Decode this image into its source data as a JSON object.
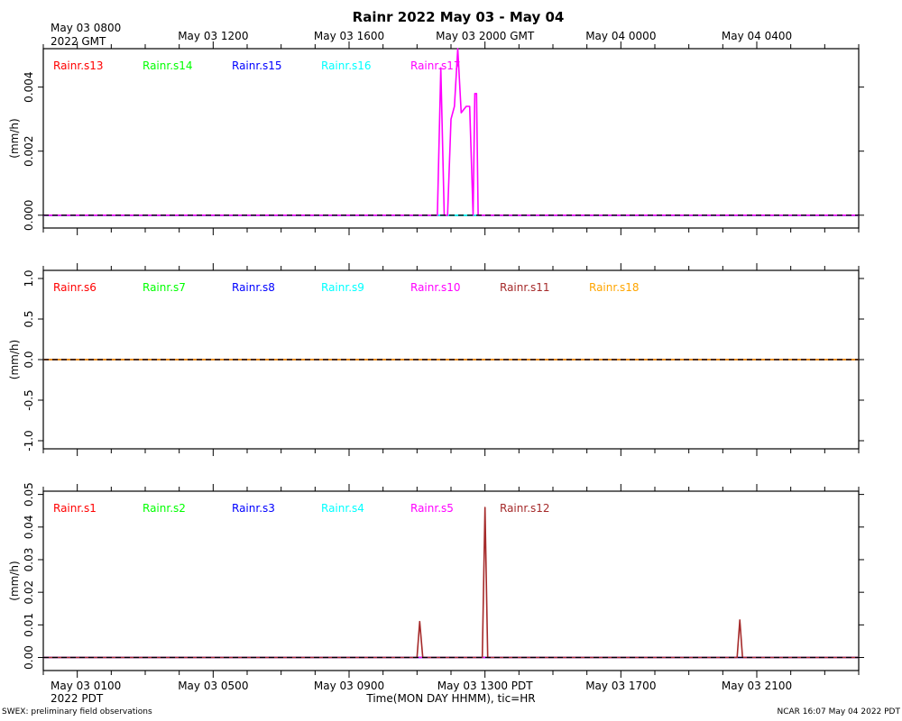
{
  "title": "Rainr 2022 May 03 - May 04",
  "top_axis": {
    "first_label_line1": "May 03 0800",
    "first_label_line2": "2022 GMT",
    "tick_labels": [
      "May 03 1200",
      "May 03 1600",
      "May 03 2000 GMT",
      "May 04 0000",
      "May 04 0400"
    ]
  },
  "bottom_axis": {
    "first_label_line1": "May 03 0100",
    "first_label_line2": "2022 PDT",
    "tick_labels": [
      "May 03 0500",
      "May 03 0900",
      "May 03 1300 PDT",
      "May 03 1700",
      "May 03 2100"
    ],
    "xlabel": "Time(MON DAY HHMM), tic=HR"
  },
  "footer": {
    "left": "SWEX: preliminary field observations",
    "right": "NCAR 16:07 May 04 2022 PDT"
  },
  "colors": {
    "red": "#ff0000",
    "green": "#00ff00",
    "blue": "#0000ff",
    "cyan": "#00ffff",
    "magenta": "#ff00ff",
    "brown": "#a52a2a",
    "orange": "#ffa500"
  },
  "chart_data": [
    {
      "type": "line",
      "ylabel": "(mm/h)",
      "xlim_hours_from_0000_pdt": [
        0,
        24
      ],
      "ylim": [
        -0.0004,
        0.0052
      ],
      "yticks": [
        0.0,
        0.002,
        0.004
      ],
      "ytick_labels": [
        "0.000",
        "0.002",
        "0.004"
      ],
      "series": [
        {
          "name": "Rainr.s13",
          "color": "#ff0000",
          "x": [
            0,
            24
          ],
          "y": [
            0,
            0
          ]
        },
        {
          "name": "Rainr.s14",
          "color": "#00ff00",
          "x": [
            0,
            24
          ],
          "y": [
            0,
            0
          ]
        },
        {
          "name": "Rainr.s15",
          "color": "#0000ff",
          "x": [
            0,
            24
          ],
          "y": [
            0,
            0
          ]
        },
        {
          "name": "Rainr.s16",
          "color": "#00ffff",
          "x": [
            0,
            24
          ],
          "y": [
            0,
            0
          ]
        },
        {
          "name": "Rainr.s17",
          "color": "#ff00ff",
          "x": [
            0,
            11.6,
            11.7,
            11.8,
            11.9,
            12.0,
            12.1,
            12.2,
            12.3,
            12.45,
            12.55,
            12.65,
            12.7,
            12.75,
            12.8,
            12.85,
            24
          ],
          "y": [
            0,
            0,
            0.0046,
            0,
            0,
            0.003,
            0.0034,
            0.0052,
            0.0032,
            0.0034,
            0.0034,
            0,
            0.0038,
            0.0038,
            0,
            0,
            0
          ]
        }
      ]
    },
    {
      "type": "line",
      "ylabel": "(mm/h)",
      "xlim_hours_from_0000_pdt": [
        0,
        24
      ],
      "ylim": [
        -1.1,
        1.1
      ],
      "yticks": [
        -1.0,
        -0.5,
        0.0,
        0.5,
        1.0
      ],
      "ytick_labels": [
        "-1.0",
        "-0.5",
        "0.0",
        "0.5",
        "1.0"
      ],
      "series": [
        {
          "name": "Rainr.s6",
          "color": "#ff0000",
          "x": [
            0,
            24
          ],
          "y": [
            0,
            0
          ]
        },
        {
          "name": "Rainr.s7",
          "color": "#00ff00",
          "x": [
            0,
            24
          ],
          "y": [
            0,
            0
          ]
        },
        {
          "name": "Rainr.s8",
          "color": "#0000ff",
          "x": [
            0,
            24
          ],
          "y": [
            0,
            0
          ]
        },
        {
          "name": "Rainr.s9",
          "color": "#00ffff",
          "x": [
            0,
            24
          ],
          "y": [
            0,
            0
          ]
        },
        {
          "name": "Rainr.s10",
          "color": "#ff00ff",
          "x": [
            0,
            24
          ],
          "y": [
            0,
            0
          ]
        },
        {
          "name": "Rainr.s11",
          "color": "#a52a2a",
          "x": [
            0,
            24
          ],
          "y": [
            0,
            0
          ]
        },
        {
          "name": "Rainr.s18",
          "color": "#ffa500",
          "x": [
            0,
            24
          ],
          "y": [
            0,
            0
          ]
        }
      ]
    },
    {
      "type": "line",
      "ylabel": "(mm/h)",
      "xlim_hours_from_0000_pdt": [
        0,
        24
      ],
      "ylim": [
        -0.004,
        0.051
      ],
      "yticks": [
        0.0,
        0.01,
        0.02,
        0.03,
        0.04,
        0.05
      ],
      "ytick_labels": [
        "0.00",
        "0.01",
        "0.02",
        "0.03",
        "0.04",
        "0.05"
      ],
      "series": [
        {
          "name": "Rainr.s1",
          "color": "#ff0000",
          "x": [
            0,
            24
          ],
          "y": [
            0,
            0
          ]
        },
        {
          "name": "Rainr.s2",
          "color": "#00ff00",
          "x": [
            0,
            24
          ],
          "y": [
            0,
            0
          ]
        },
        {
          "name": "Rainr.s3",
          "color": "#0000ff",
          "x": [
            0,
            24
          ],
          "y": [
            0,
            0
          ]
        },
        {
          "name": "Rainr.s4",
          "color": "#00ffff",
          "x": [
            0,
            24
          ],
          "y": [
            0,
            0
          ]
        },
        {
          "name": "Rainr.s5",
          "color": "#ff00ff",
          "x": [
            0,
            24
          ],
          "y": [
            0,
            0
          ]
        },
        {
          "name": "Rainr.s12",
          "color": "#a52a2a",
          "x": [
            0,
            11.0,
            11.08,
            11.17,
            12.92,
            13.0,
            13.08,
            20.42,
            20.5,
            20.58,
            24
          ],
          "y": [
            0,
            0,
            0.011,
            0,
            0,
            0.046,
            0,
            0,
            0.0115,
            0,
            0
          ]
        }
      ]
    }
  ]
}
